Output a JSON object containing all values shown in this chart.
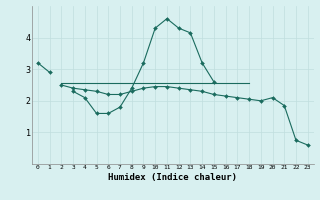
{
  "xlabel": "Humidex (Indice chaleur)",
  "x": [
    0,
    1,
    2,
    3,
    4,
    5,
    6,
    7,
    8,
    9,
    10,
    11,
    12,
    13,
    14,
    15,
    16,
    17,
    18,
    19,
    20,
    21,
    22,
    23
  ],
  "line_short": [
    3.2,
    2.9,
    null,
    null,
    null,
    null,
    null,
    null,
    null,
    null,
    null,
    null,
    null,
    null,
    null,
    null,
    null,
    null,
    null,
    null,
    null,
    null,
    null,
    null
  ],
  "line_peak": [
    null,
    null,
    null,
    2.3,
    2.1,
    1.6,
    1.6,
    1.8,
    2.4,
    3.2,
    4.3,
    4.6,
    4.3,
    4.15,
    3.2,
    2.6,
    null,
    null,
    null,
    null,
    null,
    null,
    null,
    null
  ],
  "line_flat": [
    null,
    null,
    2.55,
    2.55,
    2.55,
    2.55,
    2.55,
    2.55,
    2.55,
    2.55,
    2.55,
    2.55,
    2.55,
    2.55,
    2.55,
    2.55,
    2.55,
    2.55,
    2.55,
    null,
    null,
    null,
    null,
    null
  ],
  "line_descend": [
    null,
    null,
    2.5,
    2.4,
    2.35,
    2.3,
    2.2,
    2.2,
    2.3,
    2.4,
    2.45,
    2.45,
    2.4,
    2.35,
    2.3,
    2.2,
    2.15,
    2.1,
    2.05,
    2.0,
    2.1,
    1.85,
    0.75,
    0.6
  ],
  "color": "#1a6b5e",
  "bg_color": "#d8f0f0",
  "grid_color": "#c0dede",
  "ylim": [
    0,
    5
  ],
  "yticks": [
    1,
    2,
    3,
    4
  ],
  "xlim": [
    -0.5,
    23.5
  ]
}
